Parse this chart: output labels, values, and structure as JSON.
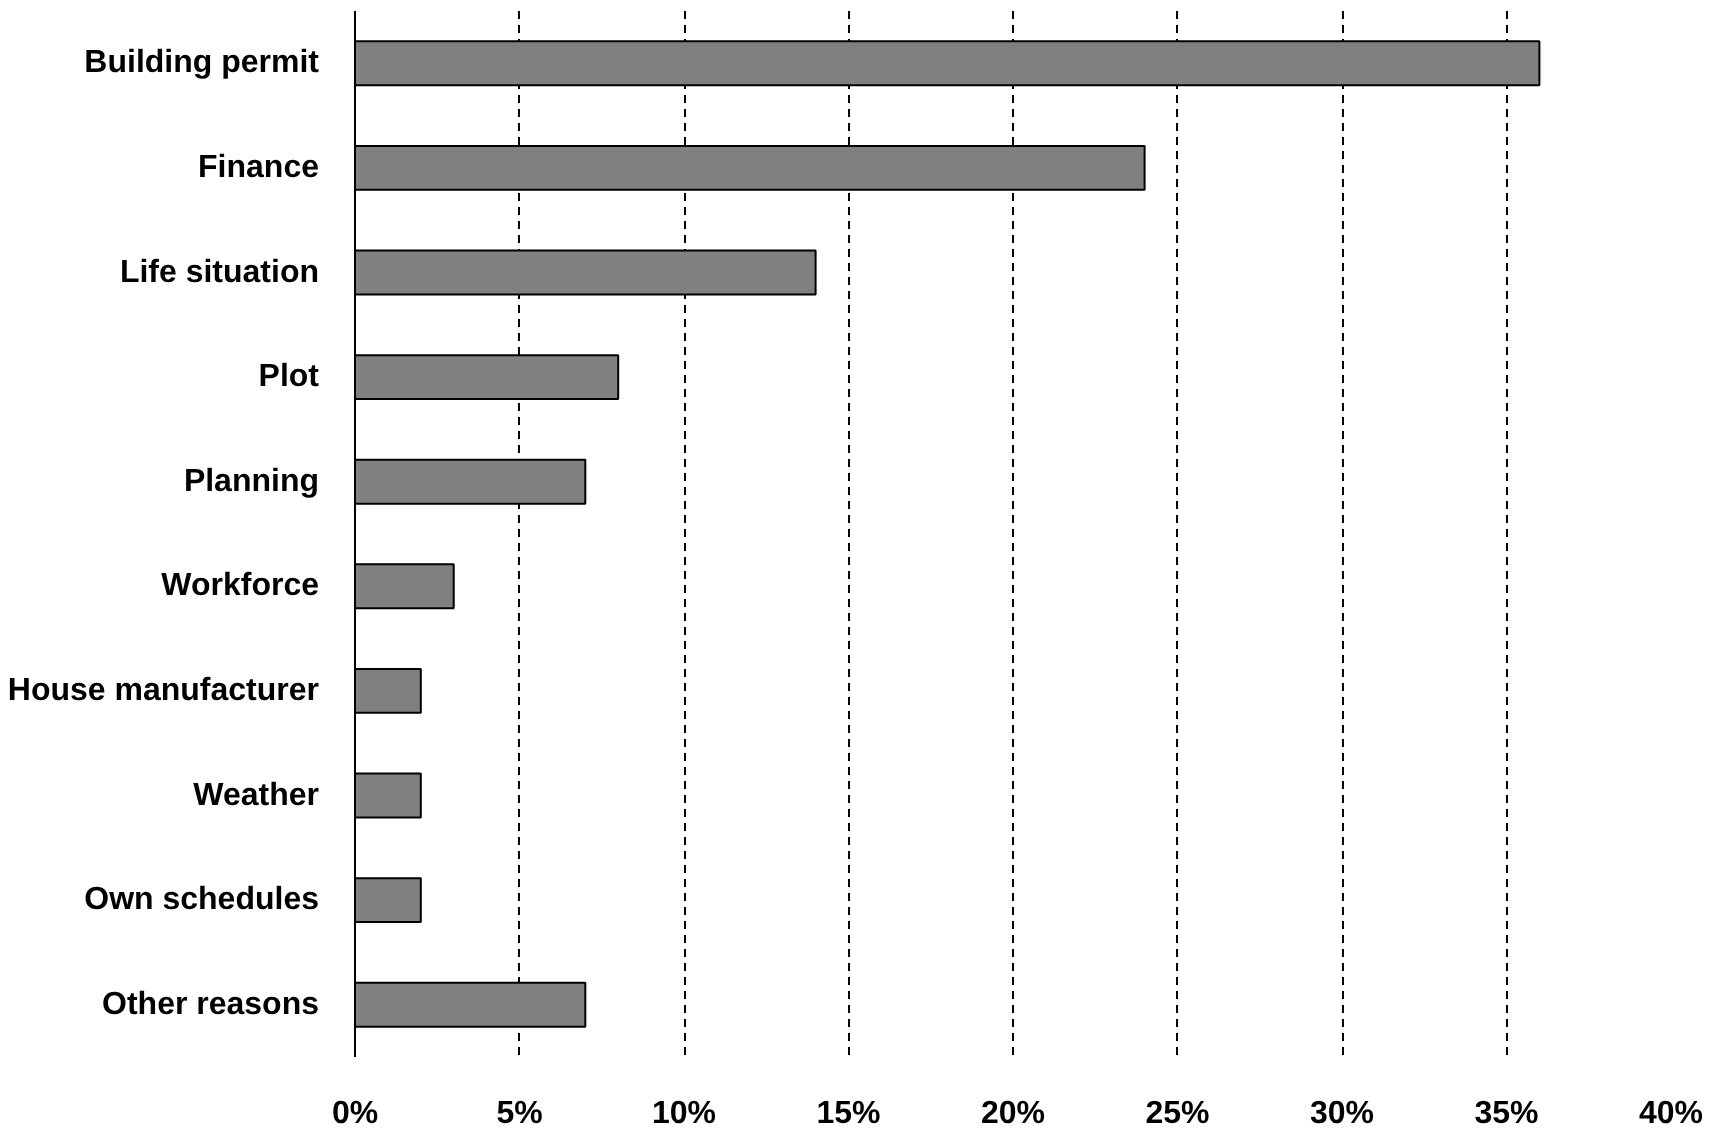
{
  "chart_data": {
    "type": "bar",
    "orientation": "horizontal",
    "categories": [
      "Building permit",
      "Finance",
      "Life situation",
      "Plot",
      "Planning",
      "Workforce",
      "House manufacturer",
      "Weather",
      "Own schedules",
      "Other reasons"
    ],
    "values": [
      36,
      24,
      14,
      8,
      7,
      3,
      2,
      2,
      2,
      7
    ],
    "color": "#808080",
    "xlim": [
      0,
      40
    ],
    "xticks": [
      {
        "value": 0,
        "label": "0%"
      },
      {
        "value": 5,
        "label": "5%"
      },
      {
        "value": 10,
        "label": "10%"
      },
      {
        "value": 15,
        "label": "15%"
      },
      {
        "value": 20,
        "label": "20%"
      },
      {
        "value": 25,
        "label": "25%"
      },
      {
        "value": 30,
        "label": "30%"
      },
      {
        "value": 35,
        "label": "35%"
      },
      {
        "value": 40,
        "label": "40%"
      }
    ],
    "grid": "x",
    "line_style": "dashed"
  }
}
